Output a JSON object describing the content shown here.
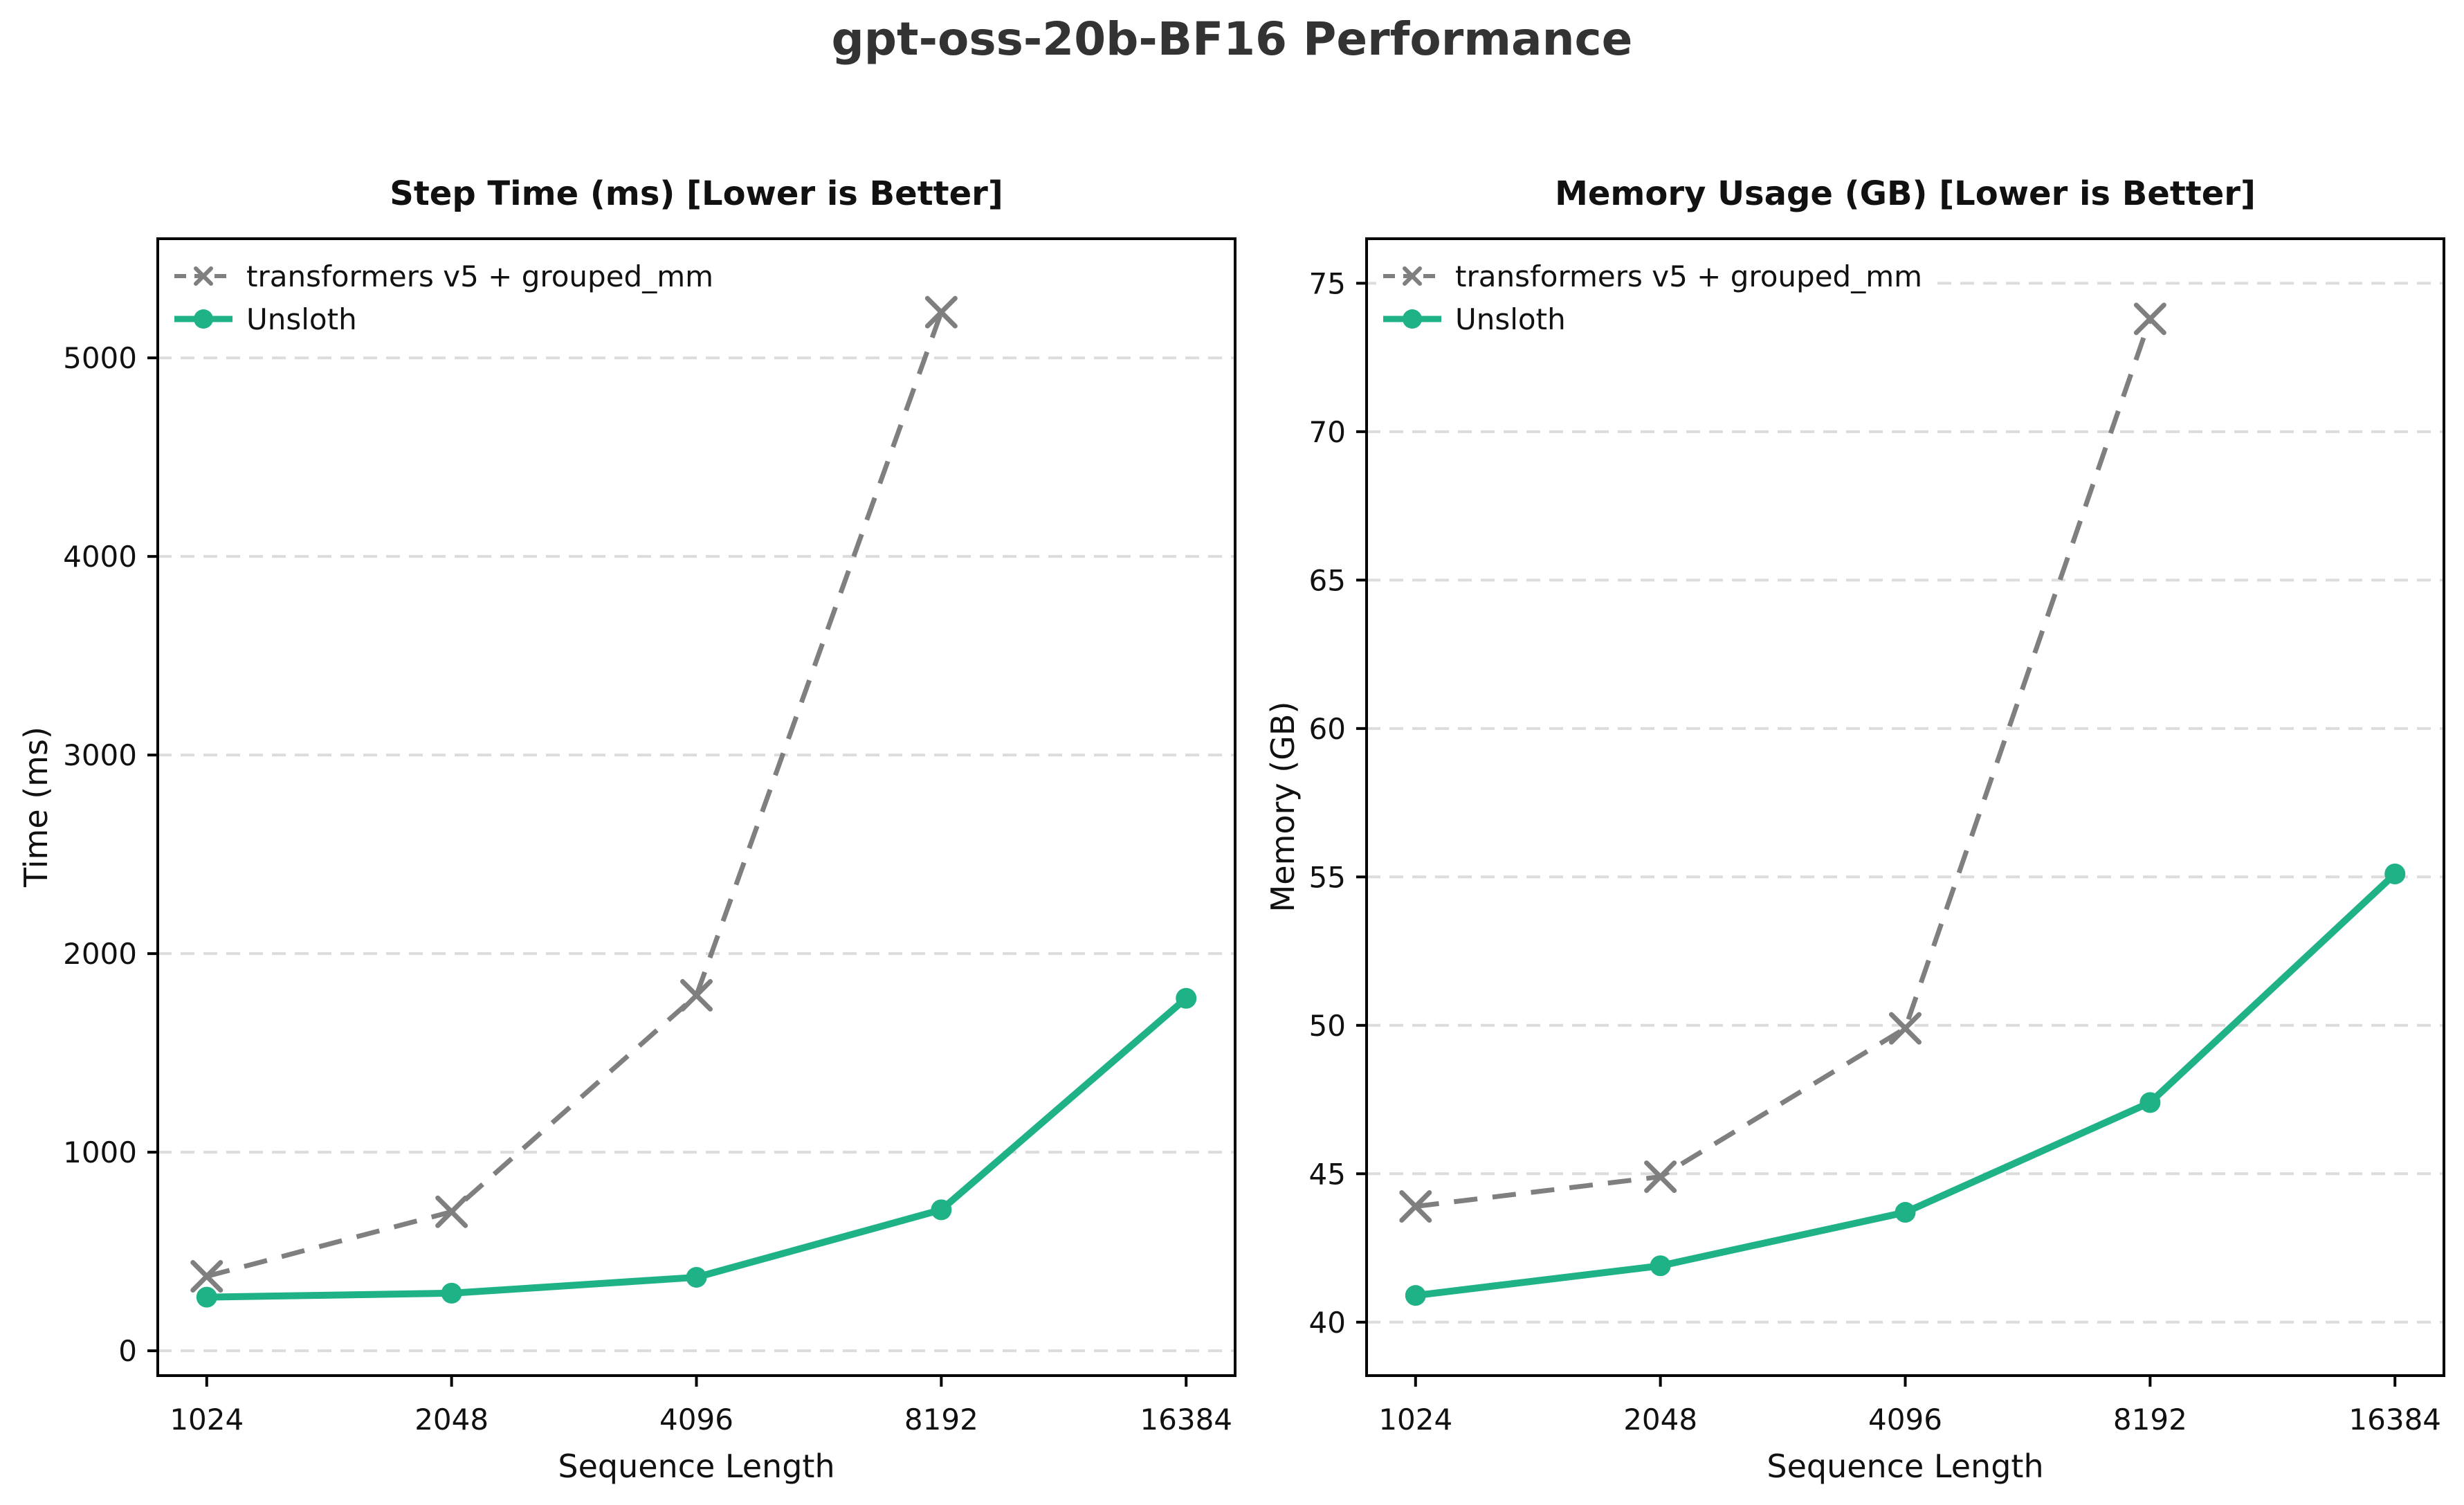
{
  "figure": {
    "title": "gpt-oss-20b-BF16 Performance",
    "background": "#ffffff",
    "text_color": "#111111",
    "title_color": "#333333",
    "grid_color": "#dcdcdc",
    "spine_color": "#000000"
  },
  "chart_data": [
    {
      "type": "line",
      "title": "Step Time (ms) [Lower is Better]",
      "xlabel": "Sequence Length",
      "ylabel": "Time (ms)",
      "categories": [
        "1024",
        "2048",
        "4096",
        "8192",
        "16384"
      ],
      "ylim": [
        -125,
        5600
      ],
      "yticks": [
        0,
        1000,
        2000,
        3000,
        4000,
        5000
      ],
      "grid": true,
      "legend_position": "upper left",
      "series": [
        {
          "name": "transformers v5 + grouped_mm",
          "color": "#7f7f7f",
          "style": "dashed",
          "marker": "x",
          "values": [
            375,
            700,
            1790,
            5230
          ]
        },
        {
          "name": "Unsloth",
          "color": "#1fb287",
          "style": "solid",
          "marker": "circle",
          "values": [
            270,
            290,
            370,
            710,
            1775
          ]
        }
      ]
    },
    {
      "type": "line",
      "title": "Memory Usage (GB) [Lower is Better]",
      "xlabel": "Sequence Length",
      "ylabel": "Memory (GB)",
      "categories": [
        "1024",
        "2048",
        "4096",
        "8192",
        "16384"
      ],
      "ylim": [
        38.2,
        76.5
      ],
      "yticks": [
        40,
        45,
        50,
        55,
        60,
        65,
        70,
        75
      ],
      "grid": true,
      "legend_position": "upper left",
      "series": [
        {
          "name": "transformers v5 + grouped_mm",
          "color": "#7f7f7f",
          "style": "dashed",
          "marker": "x",
          "values": [
            43.9,
            44.9,
            49.9,
            73.8
          ]
        },
        {
          "name": "Unsloth",
          "color": "#1fb287",
          "style": "solid",
          "marker": "circle",
          "values": [
            40.9,
            41.9,
            43.7,
            47.4,
            55.1
          ]
        }
      ]
    }
  ]
}
